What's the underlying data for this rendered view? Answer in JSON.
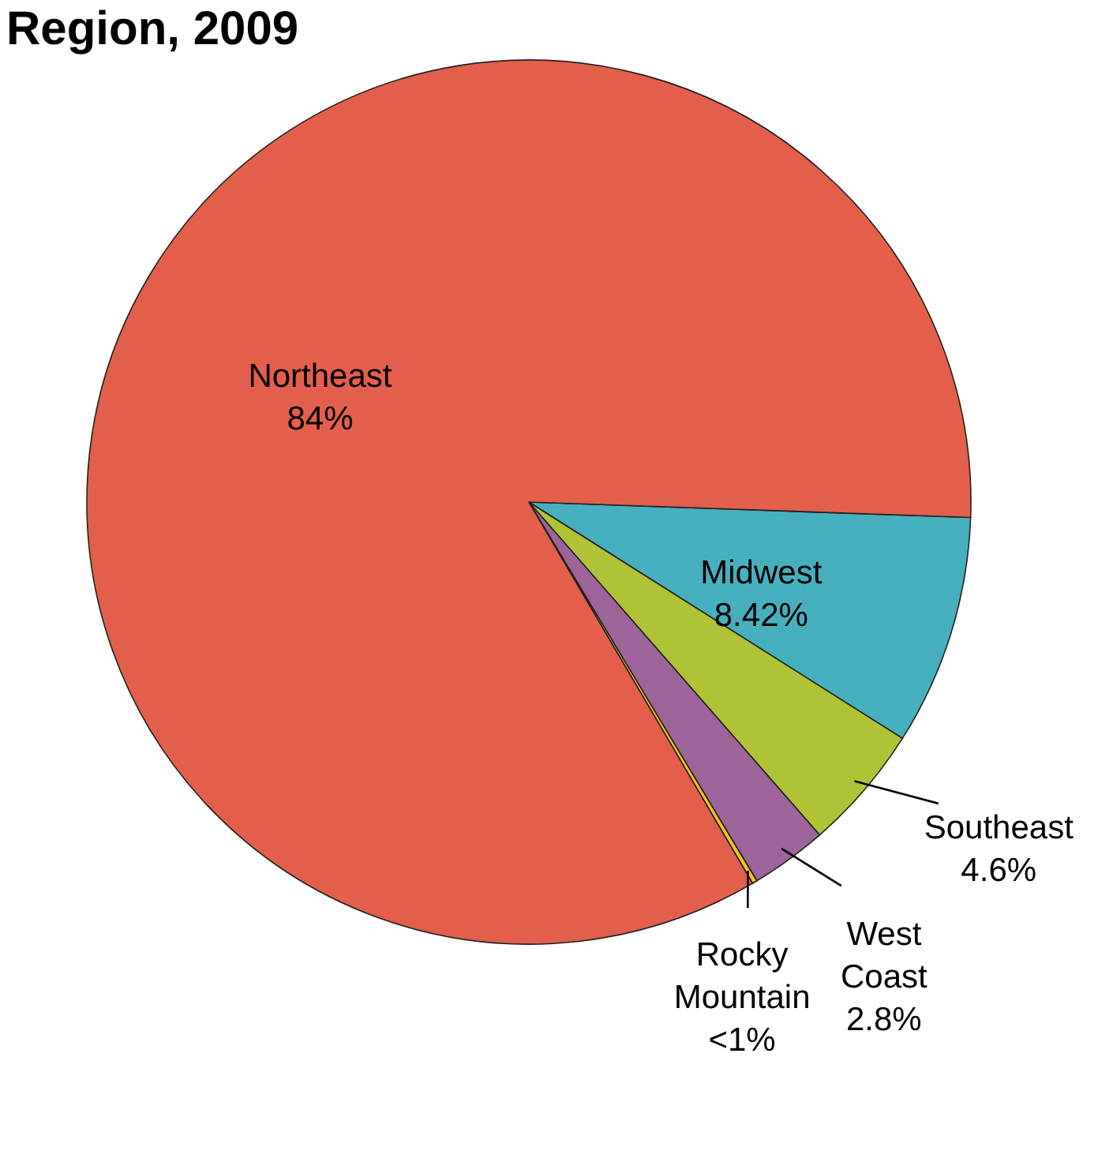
{
  "chart_data": {
    "type": "pie",
    "title": "Region, 2009",
    "categories": [
      "Midwest",
      "Southeast",
      "West Coast",
      "Rocky Mountain",
      "Northeast"
    ],
    "values": [
      8.42,
      4.6,
      2.8,
      0.18,
      84
    ],
    "value_labels": [
      "8.42%",
      "4.6%",
      "2.8%",
      "<1%",
      "84%"
    ],
    "colors": [
      "#47b0bf",
      "#b0c236",
      "#9c6499",
      "#f5c518",
      "#e35f4b"
    ]
  }
}
